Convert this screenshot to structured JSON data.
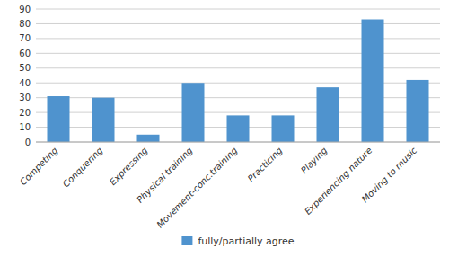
{
  "chart_data": {
    "type": "bar",
    "categories": [
      "Competing",
      "Conquering",
      "Expressing",
      "Physical training",
      "Movement-conc.training",
      "Practicing",
      "Playing",
      "Experiencing nature",
      "Moving to music"
    ],
    "series": [
      {
        "name": "fully/partially agree",
        "color": "#4F93CE",
        "values": [
          31,
          30,
          5,
          40,
          18,
          18,
          37,
          83,
          42
        ]
      }
    ],
    "ylim": [
      0,
      90
    ],
    "yticks": [
      0,
      10,
      20,
      30,
      40,
      50,
      60,
      70,
      80,
      90
    ],
    "grid": true,
    "legend": "bottom"
  }
}
